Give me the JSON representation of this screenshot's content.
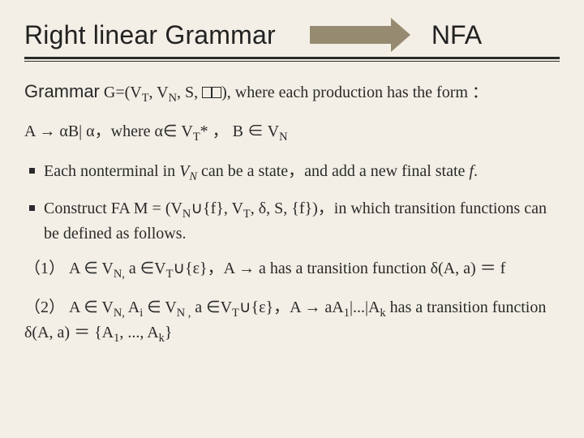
{
  "colors": {
    "background": "#f3efe6",
    "text": "#2a2a2a",
    "arrow": "#968b71",
    "rule": "#2a2a2a"
  },
  "typography": {
    "heading_family": "Segoe UI Light",
    "heading_weight": 300,
    "heading_size_pt": 24,
    "body_family": "Times New Roman",
    "body_size_pt": 15
  },
  "title": {
    "left": "Right linear Grammar",
    "right": "NFA"
  },
  "grammar_line": {
    "label": "Grammar",
    "rest_prefix": " G=(V",
    "sub1": "T",
    "mid1": ", V",
    "sub2": "N",
    "mid2": ", S, ",
    "suffix": "), where each production has the form ："
  },
  "production": {
    "prefix": "A → αB| α，where α∈ V",
    "sub1": "T",
    "mid": "* ， B ∈ V",
    "sub2": "N"
  },
  "bullets": [
    {
      "p1": "Each nonterminal in ",
      "vn_sub": "N",
      "p2": " can be a state，and add a new final state ",
      "f": "f",
      "p3": "."
    },
    {
      "p1": "Construct FA M = (V",
      "vn_sub": "N",
      "p2": "∪{f}, V",
      "vt_sub": "T",
      "p3": ", δ, S, {f})，in which transition functions can be defined as follows."
    }
  ],
  "items": [
    {
      "num": "（1）",
      "body_p1": " A ∈ V",
      "sub_n1": "N,",
      "body_p2": " a ∈V",
      "sub_t": "T",
      "body_p3": "∪{ε}，A → a has a transition function δ(A, a) ＝ f"
    },
    {
      "num": "（2）",
      "body_p1": " A ∈ V",
      "sub_n1": "N,",
      "body_p2": " A",
      "sub_i": "i",
      "body_p3": " ∈ V",
      "sub_n2": "N ,",
      "body_p4": " a ∈V",
      "sub_t": "T",
      "body_p5": "∪{ε}，A → aA",
      "sub_1": "1",
      "body_p6": "|...|A",
      "sub_k": "k",
      "body_p7": " has a transition function δ(A, a) ＝ {A",
      "sub_1b": "1",
      "body_p8": ", ..., A",
      "sub_kb": "k",
      "body_p9": "}"
    }
  ]
}
